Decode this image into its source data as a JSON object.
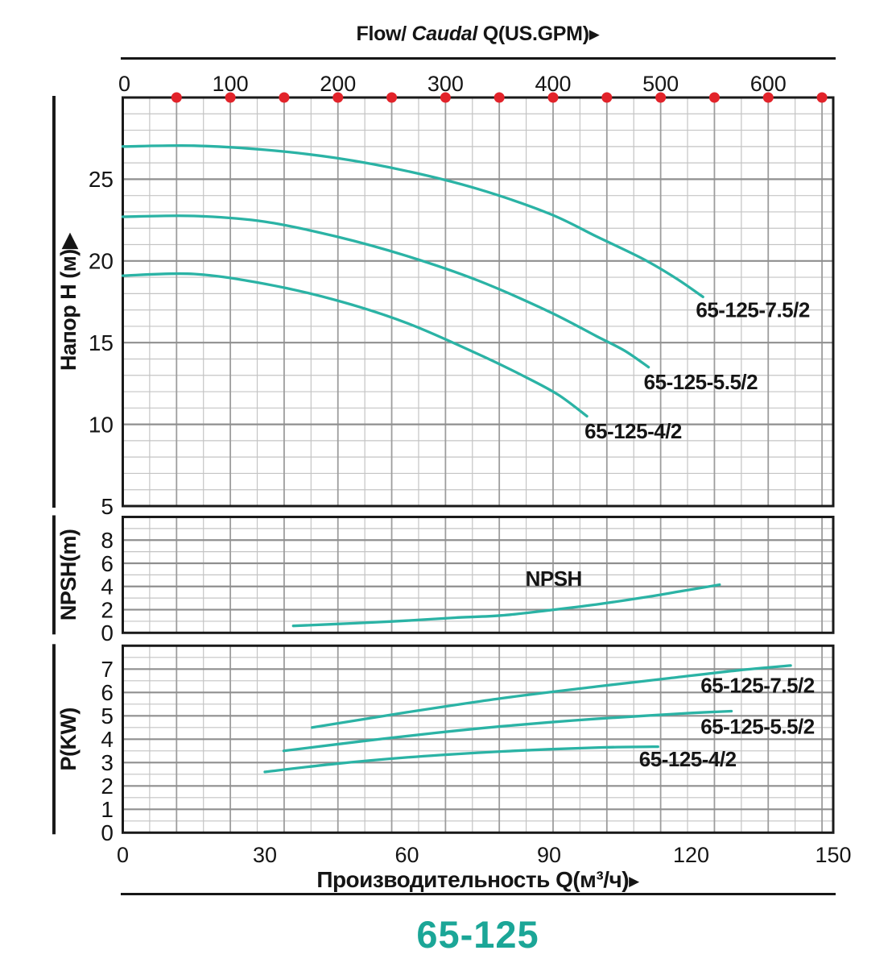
{
  "style": {
    "curve_color": "#2bb3a5",
    "dot_color": "#e2232a",
    "frame_color": "#1a1a1a",
    "minor_grid_color": "#c4c4c4",
    "major_grid_color": "#8f8f8f",
    "major_vgrid_color": "#9d9d9d",
    "title_teal": "#1ba697",
    "text_color": "#151515"
  },
  "top_axis": {
    "title_flow": "Flow/",
    "title_caudal": " Caudal",
    "title_unit": " Q(US.GPM)",
    "arrow": "▶",
    "tick_labels": [
      "0",
      "100",
      "200",
      "300",
      "400",
      "500",
      "600"
    ],
    "tick_values_gpm": [
      0,
      100,
      200,
      300,
      400,
      500,
      600
    ],
    "dot_values_gpm": [
      50,
      100,
      150,
      200,
      250,
      300,
      350,
      400,
      450,
      500,
      550,
      600,
      650
    ]
  },
  "bottom_axis": {
    "title": "Производительность Q(м³/ч)",
    "arrow": "▶",
    "tick_labels": [
      "0",
      "30",
      "60",
      "90",
      "120",
      "150"
    ],
    "tick_values_m3h": [
      0,
      30,
      60,
      90,
      120,
      150
    ]
  },
  "model_title": "65-125",
  "chart_data": [
    {
      "id": "head",
      "type": "line",
      "ylabel": "Напор H (м)▶",
      "ylim": [
        5,
        30
      ],
      "yticks": [
        5,
        10,
        15,
        20,
        25
      ],
      "minor_step": 1,
      "xlim_m3h": [
        0,
        150
      ],
      "x_gridline_step_gpm": 25,
      "series": [
        {
          "name": "65-125-7.5/2",
          "points": [
            [
              0,
              27.0
            ],
            [
              15,
              27.05
            ],
            [
              30,
              26.8
            ],
            [
              45,
              26.3
            ],
            [
              60,
              25.5
            ],
            [
              75,
              24.4
            ],
            [
              90,
              22.9
            ],
            [
              100,
              21.5
            ],
            [
              110,
              20.1
            ],
            [
              117,
              18.9
            ],
            [
              122.5,
              17.8
            ]
          ],
          "label": "65-125-7.5/2",
          "label_at": [
            121,
            17.0
          ]
        },
        {
          "name": "65-125-5.5/2",
          "points": [
            [
              0,
              22.7
            ],
            [
              15,
              22.75
            ],
            [
              30,
              22.4
            ],
            [
              45,
              21.5
            ],
            [
              60,
              20.3
            ],
            [
              75,
              18.8
            ],
            [
              90,
              16.9
            ],
            [
              100,
              15.4
            ],
            [
              106,
              14.5
            ],
            [
              111,
              13.5
            ]
          ],
          "label": "65-125-5.5/2",
          "label_at": [
            110,
            12.6
          ]
        },
        {
          "name": "65-125-4/2",
          "points": [
            [
              0,
              19.1
            ],
            [
              15,
              19.2
            ],
            [
              30,
              18.6
            ],
            [
              45,
              17.6
            ],
            [
              60,
              16.2
            ],
            [
              75,
              14.3
            ],
            [
              85,
              12.9
            ],
            [
              92,
              11.8
            ],
            [
              98,
              10.5
            ]
          ],
          "label": "65-125-4/2",
          "label_at": [
            97.5,
            9.6
          ]
        }
      ]
    },
    {
      "id": "npsh",
      "type": "line",
      "ylabel": "NPSH(m)",
      "ylim": [
        0,
        10
      ],
      "yticks": [
        0,
        2,
        4,
        6,
        8
      ],
      "minor_step": 1,
      "xlim_m3h": [
        0,
        150
      ],
      "x_gridline_step_gpm": 25,
      "series": [
        {
          "name": "NPSH",
          "points": [
            [
              36,
              0.6
            ],
            [
              50,
              0.85
            ],
            [
              60,
              1.05
            ],
            [
              70,
              1.3
            ],
            [
              80,
              1.5
            ],
            [
              90,
              1.95
            ],
            [
              100,
              2.45
            ],
            [
              110,
              3.05
            ],
            [
              118,
              3.6
            ],
            [
              126,
              4.15
            ]
          ],
          "label": "NPSH",
          "label_at": [
            85,
            4.7
          ]
        }
      ]
    },
    {
      "id": "power",
      "type": "line",
      "ylabel": "P(KW)",
      "ylim": [
        0,
        8
      ],
      "yticks": [
        0,
        1,
        2,
        3,
        4,
        5,
        6,
        7
      ],
      "minor_step": 0.5,
      "xlim_m3h": [
        0,
        150
      ],
      "x_gridline_step_gpm": 25,
      "series": [
        {
          "name": "65-125-7.5/2",
          "points": [
            [
              40,
              4.5
            ],
            [
              60,
              5.15
            ],
            [
              80,
              5.75
            ],
            [
              100,
              6.25
            ],
            [
              115,
              6.6
            ],
            [
              130,
              6.95
            ],
            [
              141,
              7.15
            ]
          ],
          "label": "65-125-7.5/2",
          "label_at": [
            122,
            6.3
          ]
        },
        {
          "name": "65-125-5.5/2",
          "points": [
            [
              34,
              3.5
            ],
            [
              50,
              3.9
            ],
            [
              66,
              4.27
            ],
            [
              80,
              4.55
            ],
            [
              95,
              4.8
            ],
            [
              110,
              5.0
            ],
            [
              120,
              5.12
            ],
            [
              128.5,
              5.2
            ]
          ],
          "label": "65-125-5.5/2",
          "label_at": [
            122,
            4.55
          ]
        },
        {
          "name": "65-125-4/2",
          "points": [
            [
              30,
              2.6
            ],
            [
              45,
              2.95
            ],
            [
              60,
              3.22
            ],
            [
              75,
              3.42
            ],
            [
              90,
              3.57
            ],
            [
              102,
              3.65
            ],
            [
              113,
              3.68
            ]
          ],
          "label": "65-125-4/2",
          "label_at": [
            109,
            3.15
          ]
        }
      ]
    }
  ]
}
